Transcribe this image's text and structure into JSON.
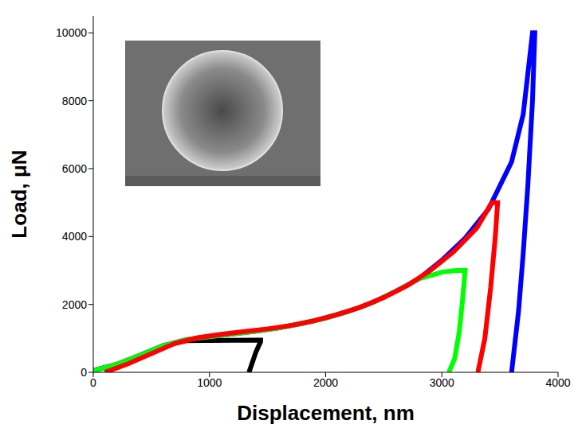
{
  "chart_data": {
    "type": "line",
    "xlabel": "Displacement, nm",
    "ylabel": "Load, μN",
    "xlim": [
      0,
      4000
    ],
    "ylim": [
      0,
      10500
    ],
    "xticks": [
      0,
      1000,
      2000,
      3000,
      4000
    ],
    "yticks": [
      0,
      2000,
      4000,
      6000,
      8000,
      10000
    ],
    "grid": false,
    "series": [
      {
        "color": "#000000",
        "x": [
          0,
          200,
          400,
          600,
          800,
          1000,
          1200,
          1420,
          1440,
          1440,
          1400,
          1370,
          1340
        ],
        "values": [
          50,
          230,
          500,
          780,
          930,
          940,
          945,
          950,
          950,
          900,
          600,
          300,
          0
        ]
      },
      {
        "color": "#0000ff",
        "x": [
          0,
          200,
          400,
          600,
          800,
          1000,
          1200,
          1400,
          1600,
          1800,
          2000,
          2200,
          2400,
          2600,
          2800,
          3000,
          3200,
          3400,
          3600,
          3700,
          3780,
          3800,
          3780,
          3740,
          3700,
          3660,
          3620,
          3600
        ],
        "values": [
          50,
          230,
          500,
          780,
          960,
          1050,
          1130,
          1210,
          1310,
          1440,
          1600,
          1800,
          2050,
          2380,
          2750,
          3300,
          3950,
          4800,
          6200,
          7600,
          10000,
          10000,
          8000,
          5500,
          3500,
          1800,
          600,
          0
        ]
      },
      {
        "color": "#00ff00",
        "x": [
          0,
          200,
          400,
          600,
          800,
          1000,
          1200,
          1400,
          1600,
          1800,
          2000,
          2200,
          2400,
          2600,
          2800,
          3000,
          3120,
          3200,
          3180,
          3150,
          3110,
          3060
        ],
        "values": [
          50,
          230,
          500,
          780,
          960,
          1050,
          1130,
          1210,
          1310,
          1440,
          1600,
          1800,
          2050,
          2380,
          2750,
          2950,
          3000,
          3000,
          2200,
          1200,
          400,
          0
        ]
      },
      {
        "color": "#ff0000",
        "x": [
          100,
          300,
          500,
          700,
          900,
          1100,
          1300,
          1500,
          1700,
          1900,
          2100,
          2300,
          2500,
          2700,
          2900,
          3100,
          3300,
          3430,
          3480,
          3460,
          3420,
          3370,
          3310
        ],
        "values": [
          0,
          250,
          550,
          850,
          1020,
          1120,
          1200,
          1280,
          1380,
          1520,
          1700,
          1920,
          2200,
          2550,
          3000,
          3550,
          4250,
          5000,
          5000,
          4000,
          2500,
          1000,
          0
        ]
      }
    ]
  }
}
